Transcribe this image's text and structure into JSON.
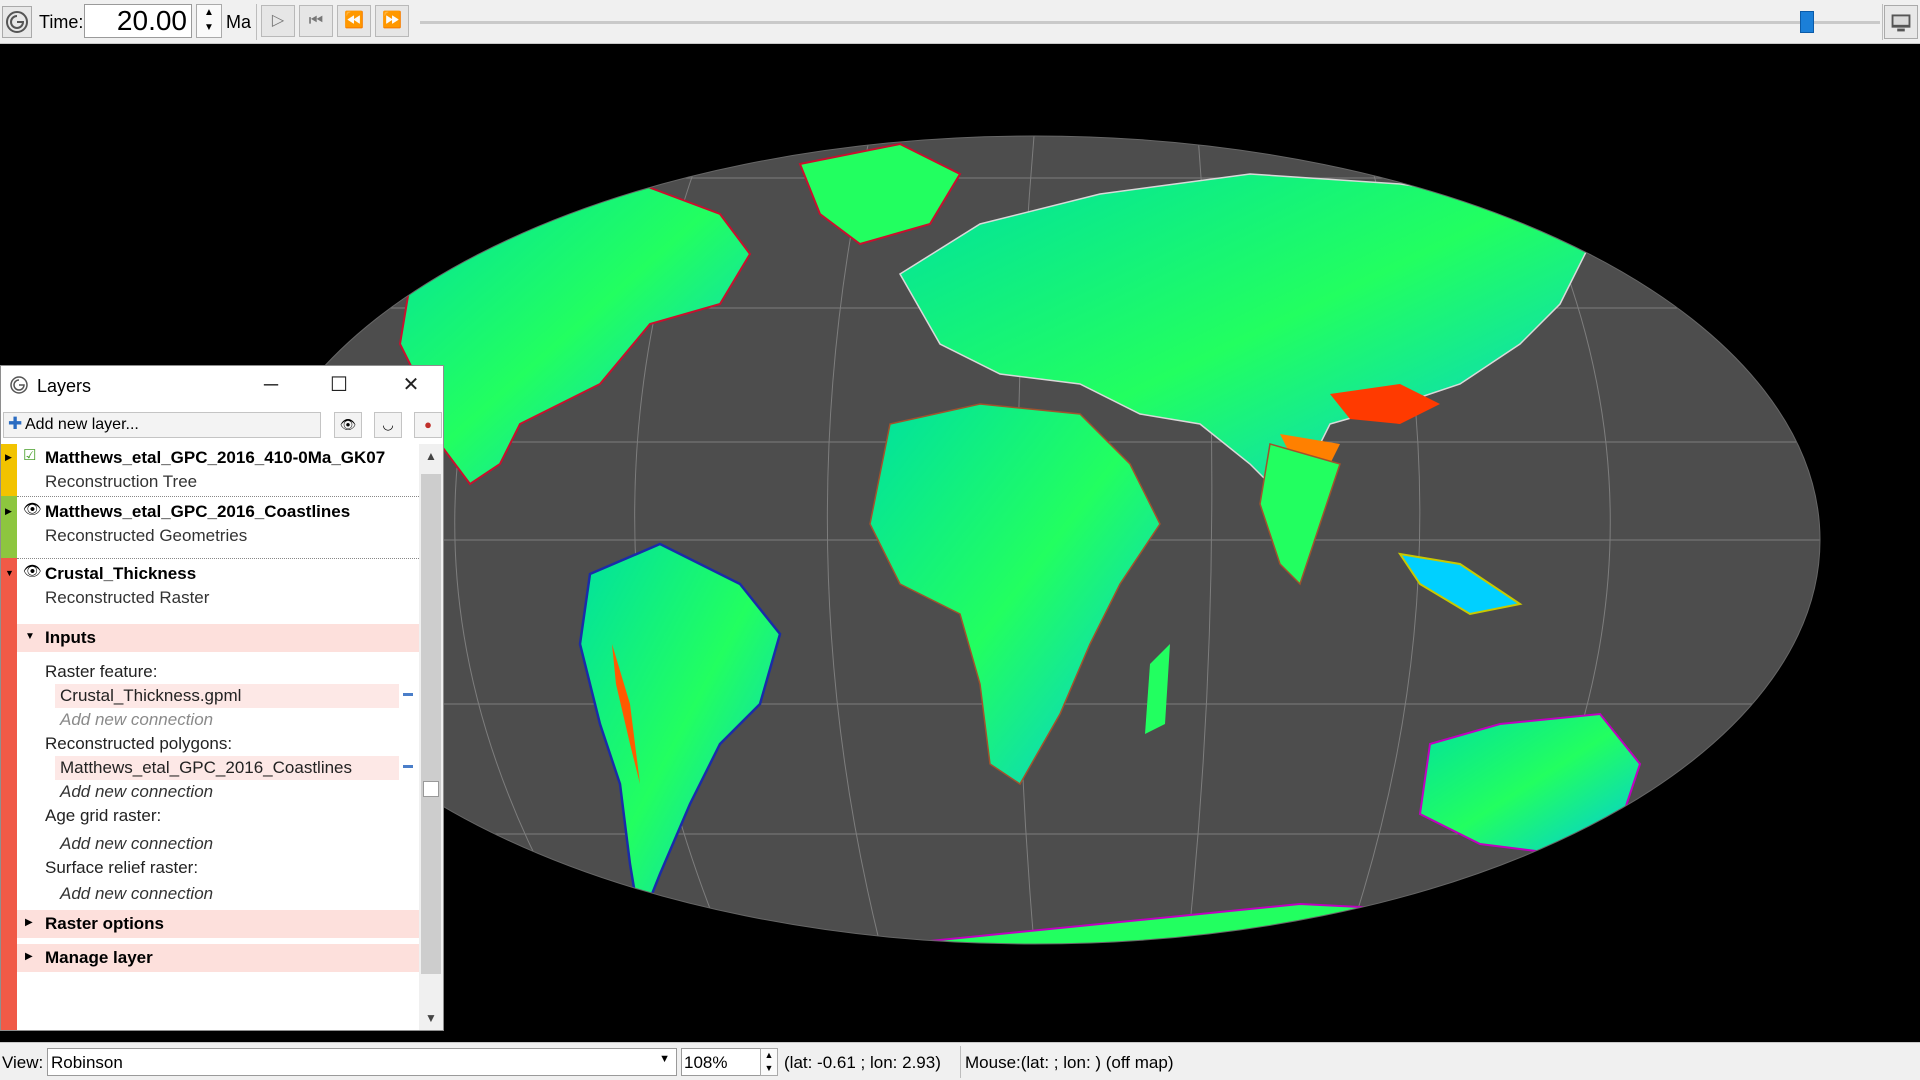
{
  "toolbar": {
    "time_label": "Time:",
    "time_value": "20.00",
    "time_unit": "Ma",
    "play_icon": "play-icon",
    "rewind_start_icon": "skip-to-start-icon",
    "step_back_icon": "step-back-icon",
    "step_forward_icon": "step-forward-icon",
    "slider_fraction": 0.95,
    "accent_color": "#1b7fd8"
  },
  "layers_window": {
    "title": "Layers",
    "add_layer_label": "Add new layer...",
    "layers": [
      {
        "name": "Matthews_etal_GPC_2016_410-0Ma_GK07",
        "type": "Reconstruction Tree",
        "color": "#f2c300"
      },
      {
        "name": "Matthews_etal_GPC_2016_Coastlines",
        "type": "Reconstructed Geometries",
        "color": "#8dc63f"
      },
      {
        "name": "Crustal_Thickness",
        "type": "Reconstructed Raster",
        "color": "#f05a47"
      }
    ],
    "inputs_section": "Inputs",
    "raster_feature_label": "Raster feature:",
    "raster_feature_conn": "Crustal_Thickness.gpml",
    "add_new_connection": "Add new connection",
    "reconstructed_polygons_label": "Reconstructed polygons:",
    "reconstructed_polygons_conn": "Matthews_etal_GPC_2016_Coastlines",
    "age_grid_label": "Age grid raster:",
    "surface_relief_label": "Surface relief raster:",
    "raster_options": "Raster options",
    "manage_layer": "Manage layer"
  },
  "status": {
    "view_label": "View:",
    "projection": "Robinson",
    "zoom": "108%",
    "center": "(lat: -0.61 ; lon: 2.93)",
    "mouse": "Mouse:(lat:  ; lon: ) (off map)"
  }
}
